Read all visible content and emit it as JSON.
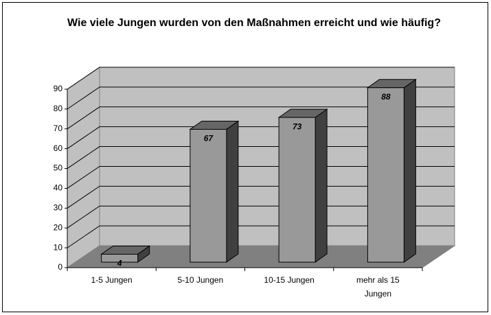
{
  "chart_data": {
    "type": "bar3d",
    "title": "Wie viele Jungen wurden von den Maßnahmen erreicht und wie häufig?",
    "categories": [
      "1-5 Jungen",
      "5-10 Jungen",
      "10-15 Jungen",
      "mehr als 15 Jungen"
    ],
    "values": [
      4,
      67,
      73,
      88
    ],
    "color": "#999999",
    "ylim": [
      0,
      90
    ],
    "yticks": [
      0,
      10,
      20,
      30,
      40,
      50,
      60,
      70,
      80,
      90
    ],
    "grid": true
  }
}
